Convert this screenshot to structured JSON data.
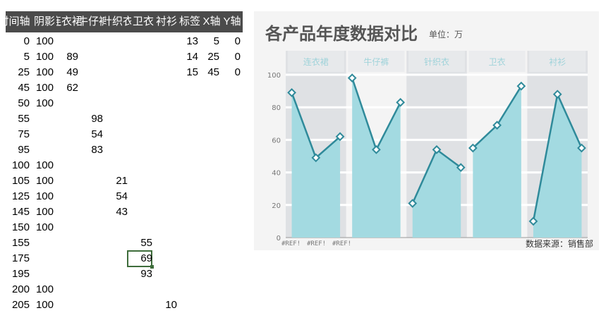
{
  "sheet": {
    "headers": [
      "时间轴",
      "阴影",
      "连衣裙",
      "牛仔裤",
      "针织衣",
      "卫衣",
      "衬衫",
      "标签",
      "X轴",
      "Y轴"
    ],
    "rows": [
      [
        "0",
        "100",
        "",
        "",
        "",
        "",
        "",
        "13",
        "5",
        "0"
      ],
      [
        "5",
        "100",
        "89",
        "",
        "",
        "",
        "",
        "14",
        "25",
        "0"
      ],
      [
        "25",
        "100",
        "49",
        "",
        "",
        "",
        "",
        "15",
        "45",
        "0"
      ],
      [
        "45",
        "100",
        "62",
        "",
        "",
        "",
        "",
        "",
        "",
        ""
      ],
      [
        "50",
        "100",
        "",
        "",
        "",
        "",
        "",
        "",
        "",
        ""
      ],
      [
        "55",
        "",
        "",
        "98",
        "",
        "",
        "",
        "",
        "",
        ""
      ],
      [
        "75",
        "",
        "",
        "54",
        "",
        "",
        "",
        "",
        "",
        ""
      ],
      [
        "95",
        "",
        "",
        "83",
        "",
        "",
        "",
        "",
        "",
        ""
      ],
      [
        "100",
        "100",
        "",
        "",
        "",
        "",
        "",
        "",
        "",
        ""
      ],
      [
        "105",
        "100",
        "",
        "",
        "21",
        "",
        "",
        "",
        "",
        ""
      ],
      [
        "125",
        "100",
        "",
        "",
        "54",
        "",
        "",
        "",
        "",
        ""
      ],
      [
        "145",
        "100",
        "",
        "",
        "43",
        "",
        "",
        "",
        "",
        ""
      ],
      [
        "150",
        "100",
        "",
        "",
        "",
        "",
        "",
        "",
        "",
        ""
      ],
      [
        "155",
        "",
        "",
        "",
        "",
        "55",
        "",
        "",
        "",
        ""
      ],
      [
        "175",
        "",
        "",
        "",
        "",
        "69",
        "",
        "",
        "",
        ""
      ],
      [
        "195",
        "",
        "",
        "",
        "",
        "93",
        "",
        "",
        "",
        ""
      ],
      [
        "200",
        "100",
        "",
        "",
        "",
        "",
        "",
        "",
        "",
        ""
      ],
      [
        "205",
        "100",
        "",
        "",
        "",
        "",
        "10",
        "",
        "",
        ""
      ]
    ],
    "selected_cell": {
      "row": 14,
      "col": 5
    }
  },
  "chart": {
    "title": "各产品年度数据对比",
    "unit": "单位：万",
    "source": "数据来源：销售部",
    "ref_labels": [
      "#REF!",
      "#REF!",
      "#REF!"
    ]
  },
  "chart_data": {
    "type": "area",
    "x_range": [
      0,
      250
    ],
    "ylim": [
      0,
      100
    ],
    "y_ticks": [
      0,
      20,
      40,
      60,
      80,
      100
    ],
    "categories": [
      "连衣裙",
      "牛仔裤",
      "针织衣",
      "卫衣",
      "衬衫"
    ],
    "shade_bands": [
      [
        0,
        50
      ],
      [
        100,
        150
      ],
      [
        200,
        250
      ]
    ],
    "label_positions": [
      25,
      75,
      125,
      175,
      225
    ],
    "series": [
      {
        "x": [
          5,
          25,
          45
        ],
        "y": [
          89,
          49,
          62
        ]
      },
      {
        "x": [
          55,
          75,
          95
        ],
        "y": [
          98,
          54,
          83
        ]
      },
      {
        "x": [
          105,
          125,
          145
        ],
        "y": [
          21,
          54,
          43
        ]
      },
      {
        "x": [
          155,
          175,
          195
        ],
        "y": [
          55,
          69,
          93
        ]
      },
      {
        "x": [
          205,
          225,
          245
        ],
        "y": [
          10,
          88,
          55
        ]
      }
    ],
    "colors": {
      "line": "#2f8a9a",
      "fill": "#a3dae1",
      "band": "#dfe1e4",
      "label": "#9fd3da"
    }
  }
}
